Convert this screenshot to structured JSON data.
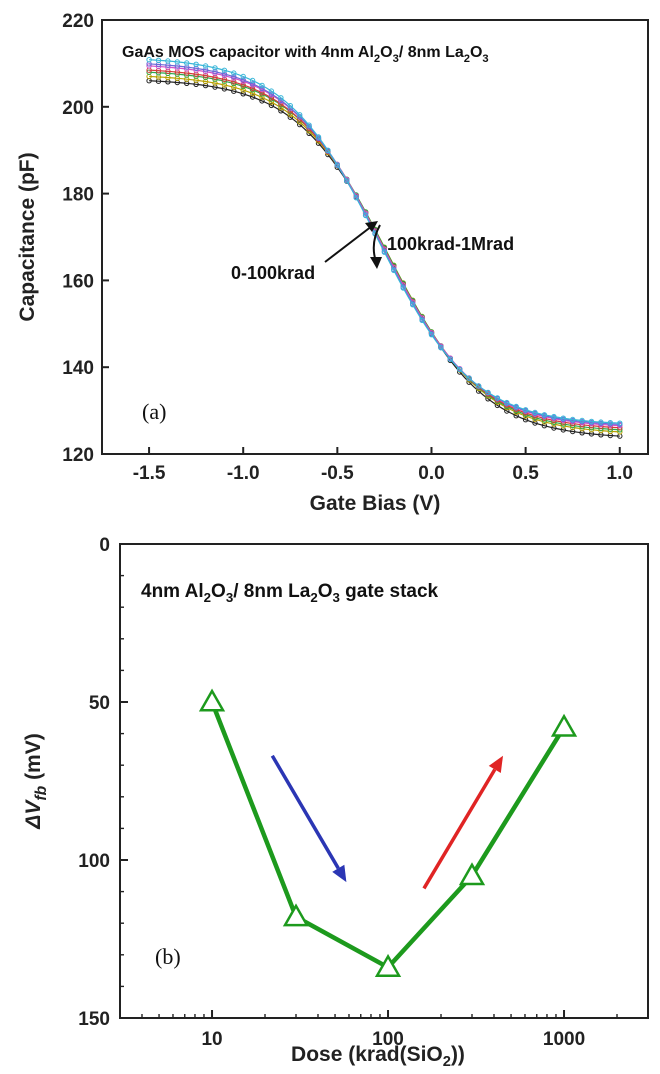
{
  "chart_data": [
    {
      "type": "line",
      "panel_label": "(a)",
      "title_parts": [
        {
          "t": "GaAs MOS capacitor with 4nm Al",
          "sub": false
        },
        {
          "t": "2",
          "sub": true
        },
        {
          "t": "O",
          "sub": false
        },
        {
          "t": "3",
          "sub": true
        },
        {
          "t": "/ 8nm La",
          "sub": false
        },
        {
          "t": "2",
          "sub": true
        },
        {
          "t": "O",
          "sub": false
        },
        {
          "t": "3",
          "sub": true
        }
      ],
      "xlabel": "Gate Bias (V)",
      "ylabel": "Capacitance (pF)",
      "xlim": [
        -1.75,
        1.15
      ],
      "ylim": [
        120,
        220
      ],
      "x_ticks": [
        -1.5,
        -1.0,
        -0.5,
        0.0,
        0.5,
        1.0
      ],
      "x_tick_labels": [
        "-1.5",
        "-1.0",
        "-0.5",
        "0.0",
        "0.5",
        "1.0"
      ],
      "y_ticks": [
        120,
        140,
        160,
        180,
        200,
        220
      ],
      "y_tick_labels": [
        "120",
        "140",
        "160",
        "180",
        "200",
        "220"
      ],
      "annotations": [
        "0-100krad",
        "100krad-1Mrad"
      ],
      "series": [
        {
          "color": "#222222",
          "v1": 198.5,
          "v2": 126.5
        },
        {
          "color": "#b8a000",
          "v1": 199.5,
          "v2": 127.5
        },
        {
          "color": "#2ea84a",
          "v1": 200.5,
          "v2": 128.0
        },
        {
          "color": "#d63a3a",
          "v1": 201.0,
          "v2": 128.5
        },
        {
          "color": "#d24fc8",
          "v1": 202.0,
          "v2": 129.0
        },
        {
          "color": "#6a6ad8",
          "v1": 202.5,
          "v2": 129.3
        },
        {
          "color": "#38b6d8",
          "v1": 203.5,
          "v2": 129.6
        }
      ]
    },
    {
      "type": "line",
      "panel_label": "(b)",
      "x_scale": "log",
      "y_inverted": true,
      "title_parts": [
        {
          "t": "4nm Al",
          "sub": false
        },
        {
          "t": "2",
          "sub": true
        },
        {
          "t": "O",
          "sub": false
        },
        {
          "t": "3",
          "sub": true
        },
        {
          "t": "/ 8nm La",
          "sub": false
        },
        {
          "t": "2",
          "sub": true
        },
        {
          "t": "O",
          "sub": false
        },
        {
          "t": "3",
          "sub": true
        },
        {
          "t": " gate stack",
          "sub": false
        }
      ],
      "xlabel_parts": [
        {
          "t": "Dose (krad(SiO",
          "sub": false
        },
        {
          "t": "2",
          "sub": true
        },
        {
          "t": "))",
          "sub": false
        }
      ],
      "ylabel_main": "ΔV",
      "ylabel_sub": "fb",
      "ylabel_unit": " (mV)",
      "xlim": [
        3,
        3000
      ],
      "ylim": [
        0,
        150
      ],
      "x_ticks": [
        10,
        100,
        1000
      ],
      "x_tick_labels": [
        "10",
        "100",
        "1000"
      ],
      "y_ticks": [
        0,
        50,
        100,
        150
      ],
      "y_tick_labels": [
        "0",
        "50",
        "100",
        "150"
      ],
      "series": [
        {
          "color": "#1d9a1d",
          "x": [
            10,
            30,
            100,
            300,
            1000
          ],
          "y": [
            50,
            118,
            134,
            105,
            58
          ]
        }
      ],
      "arrows": [
        {
          "color": "#2b36b4",
          "from": [
            22,
            67
          ],
          "to": [
            58,
            107
          ]
        },
        {
          "color": "#e02424",
          "from": [
            160,
            109
          ],
          "to": [
            450,
            67
          ]
        }
      ]
    }
  ]
}
